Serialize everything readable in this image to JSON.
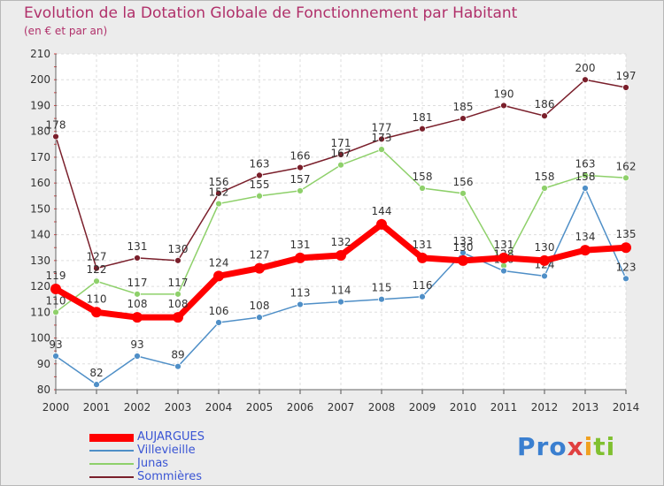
{
  "header": {
    "title": "Evolution de la Dotation Globale de Fonctionnement par Habitant",
    "subtitle": "(en € et par an)"
  },
  "brand": {
    "logo_text": "Proxiti",
    "logo_part1": "Pro",
    "logo_part2": "x",
    "logo_part3": "i",
    "logo_part4": "ti"
  },
  "chart_data": {
    "type": "line",
    "x": [
      2000,
      2001,
      2002,
      2003,
      2004,
      2005,
      2006,
      2007,
      2008,
      2009,
      2010,
      2011,
      2012,
      2013,
      2014
    ],
    "ylim": [
      80,
      210
    ],
    "yticks": [
      80,
      90,
      100,
      110,
      120,
      130,
      140,
      150,
      160,
      170,
      180,
      190,
      200,
      210
    ],
    "grid": true,
    "legend_position": "bottom-left",
    "series": [
      {
        "name": "Sommières",
        "color": "#7a1f2b",
        "values": [
          178,
          127,
          131,
          130,
          156,
          163,
          166,
          171,
          177,
          181,
          185,
          190,
          186,
          200,
          197
        ]
      },
      {
        "name": "Junas",
        "color": "#8ed06a",
        "values": [
          110,
          122,
          117,
          117,
          152,
          155,
          157,
          167,
          173,
          158,
          156,
          128,
          158,
          163,
          162
        ]
      },
      {
        "name": "Villevieille",
        "color": "#4f8fc7",
        "values": [
          93,
          82,
          93,
          89,
          106,
          108,
          113,
          114,
          115,
          116,
          133,
          126,
          124,
          158,
          123
        ]
      },
      {
        "name": "AUJARGUES",
        "color": "#ff0000",
        "values": [
          119,
          110,
          108,
          108,
          124,
          127,
          131,
          132,
          144,
          131,
          130,
          131,
          130,
          134,
          135
        ]
      }
    ],
    "legend_order": [
      "AUJARGUES",
      "Villevieille",
      "Junas",
      "Sommières"
    ]
  }
}
